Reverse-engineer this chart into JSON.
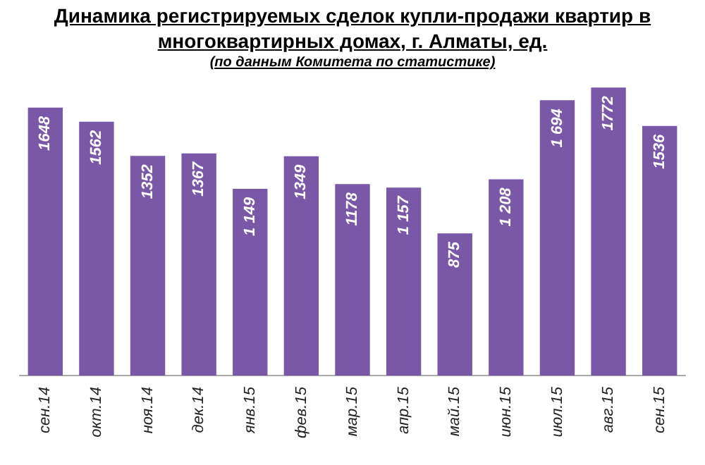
{
  "chart_data": {
    "type": "bar",
    "title": "Динамика регистрируемых сделок купли-продажи квартир в многоквартирных домах, г. Алматы, ед.",
    "subtitle": "(по данным Комитета по статистике)",
    "categories": [
      "сен.14",
      "окт.14",
      "ноя.14",
      "дек.14",
      "янв.15",
      "фев.15",
      "мар.15",
      "апр.15",
      "май.15",
      "июн.15",
      "июл.15",
      "авг.15",
      "сен.15"
    ],
    "values": [
      1648,
      1562,
      1352,
      1367,
      1149,
      1349,
      1178,
      1157,
      875,
      1208,
      1694,
      1772,
      1536
    ],
    "value_labels": [
      "1648",
      "1562",
      "1352",
      "1367",
      "1 149",
      "1349",
      "1178",
      "1 157",
      "875",
      "1 208",
      "1 694",
      "1772",
      "1536"
    ],
    "color": "#7a58a8",
    "grid": false,
    "legend": false
  }
}
